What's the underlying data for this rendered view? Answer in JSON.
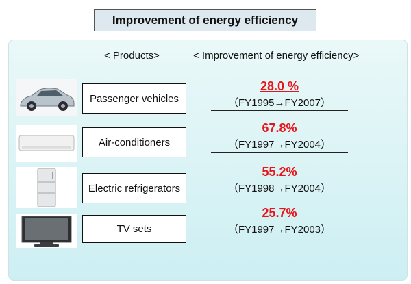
{
  "title": "Improvement of energy efficiency",
  "headers": {
    "products": "< Products>",
    "improvement": "< Improvement of energy efficiency>"
  },
  "rows": [
    {
      "product": "Passenger vehicles",
      "percent": "28.0 %",
      "period": "（FY1995→FY2007）",
      "icon": "car-icon"
    },
    {
      "product": "Air-conditioners",
      "percent": "67.8%",
      "period": "（FY1997→FY2004）",
      "icon": "air-conditioner-icon"
    },
    {
      "product": "Electric refrigerators",
      "percent": "55.2%",
      "period": "（FY1998→FY2004）",
      "icon": "refrigerator-icon"
    },
    {
      "product": "TV sets",
      "percent": "25.7%",
      "period": "（FY1997→FY2003）",
      "icon": "tv-icon"
    }
  ],
  "colors": {
    "accent": "#e8141a",
    "title_bg": "#dde9ee",
    "panel_bg": "#d8f3f6"
  }
}
